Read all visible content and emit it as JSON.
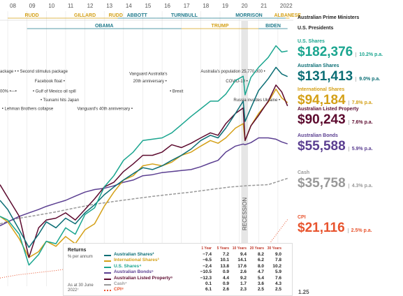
{
  "chart_data": {
    "type": "line",
    "title": "",
    "x_ticks": [
      "08",
      "09",
      "10",
      "11",
      "12",
      "13",
      "14",
      "15",
      "16",
      "17",
      "18",
      "19",
      "20",
      "21",
      "2022"
    ],
    "prime_ministers": [
      {
        "name": "RUDD",
        "from": 2008.0,
        "to": 2010.5,
        "color": "#d4a017"
      },
      {
        "name": "GILLARD",
        "from": 2010.5,
        "to": 2013.5,
        "color": "#d4a017"
      },
      {
        "name": "RUDD",
        "from": 2013.5,
        "to": 2013.7,
        "color": "#d4a017"
      },
      {
        "name": "ABBOTT",
        "from": 2013.7,
        "to": 2015.7,
        "color": "#1f7a8c"
      },
      {
        "name": "TURNBULL",
        "from": 2015.7,
        "to": 2018.6,
        "color": "#1f7a8c"
      },
      {
        "name": "MORRISON",
        "from": 2018.6,
        "to": 2022.4,
        "color": "#1f7a8c"
      },
      {
        "name": "ALBANESE",
        "from": 2022.4,
        "to": 2022.6,
        "color": "#d4a017"
      }
    ],
    "presidents": [
      {
        "name": "OBAMA",
        "from": 2009.0,
        "to": 2017.0,
        "color": "#1f7a8c"
      },
      {
        "name": "TRUMP",
        "from": 2017.0,
        "to": 2021.0,
        "color": "#d4a017"
      },
      {
        "name": "BIDEN",
        "from": 2021.0,
        "to": 2022.5,
        "color": "#1f7a8c"
      }
    ],
    "annotations": [
      {
        "text": "ackage • • Second stimulus package",
        "x": 2007.6,
        "y": 0.145
      },
      {
        "text": "Facebook float •",
        "x": 2009.4,
        "y": 0.185
      },
      {
        "text": "00% •—•",
        "x": 2007.6,
        "y": 0.225
      },
      {
        "text": "• Gulf of Mexico oil spill",
        "x": 2009.3,
        "y": 0.225
      },
      {
        "text": "• Tsunami hits Japan",
        "x": 2009.7,
        "y": 0.26
      },
      {
        "text": "• Lehman Brothers collapse",
        "x": 2007.7,
        "y": 0.295
      },
      {
        "text": "Vanguard's 40th anniversary •",
        "x": 2011.6,
        "y": 0.295
      },
      {
        "text": "Vanguard Australia's",
        "x": 2014.3,
        "y": 0.155
      },
      {
        "text": "20th anniversary •",
        "x": 2014.5,
        "y": 0.185
      },
      {
        "text": "• Brexit",
        "x": 2016.4,
        "y": 0.225
      },
      {
        "text": "Australia's population 25,770,000 •",
        "x": 2018.0,
        "y": 0.145
      },
      {
        "text": "COVID-19 •",
        "x": 2019.3,
        "y": 0.185
      },
      {
        "text": "Russia invades Ukraine •",
        "x": 2019.7,
        "y": 0.26
      }
    ],
    "recession_label": "RECESSION",
    "right_axis_label": "1.25",
    "series": [
      {
        "name": "U.S. Shares",
        "color": "#1aa58f",
        "x": [
          2007.6,
          2008.0,
          2008.6,
          2009.1,
          2009.6,
          2010.0,
          2010.5,
          2011.0,
          2011.5,
          2012.0,
          2012.5,
          2013.0,
          2013.5,
          2014.0,
          2014.5,
          2015.0,
          2015.5,
          2016.0,
          2016.5,
          2017.0,
          2017.5,
          2018.0,
          2018.5,
          2018.9,
          2019.3,
          2019.8,
          2020.2,
          2020.3,
          2020.6,
          2021.0,
          2021.5,
          2021.9,
          2022.2,
          2022.5
        ],
        "y": [
          22000,
          21000,
          17500,
          11800,
          13500,
          16000,
          15500,
          19000,
          17500,
          22500,
          24500,
          32000,
          37000,
          45000,
          50000,
          58000,
          59000,
          60000,
          64000,
          71000,
          79000,
          87000,
          96000,
          96000,
          105000,
          125000,
          132000,
          104000,
          130000,
          148000,
          168000,
          195000,
          180000,
          182376
        ]
      },
      {
        "name": "Australian Shares",
        "color": "#0b6e75",
        "x": [
          2007.6,
          2008.0,
          2008.6,
          2009.1,
          2009.6,
          2010.0,
          2010.5,
          2011.0,
          2011.5,
          2012.0,
          2012.5,
          2013.0,
          2013.5,
          2014.0,
          2014.5,
          2015.0,
          2015.5,
          2016.0,
          2016.5,
          2017.0,
          2017.5,
          2018.0,
          2018.5,
          2018.9,
          2019.3,
          2019.8,
          2020.2,
          2020.3,
          2020.6,
          2021.0,
          2021.5,
          2021.9,
          2022.2,
          2022.5
        ],
        "y": [
          27000,
          24000,
          18500,
          14800,
          17500,
          20500,
          19000,
          21500,
          20000,
          23000,
          25500,
          29000,
          32000,
          35000,
          38000,
          41000,
          40000,
          42000,
          45000,
          48000,
          52000,
          58000,
          62000,
          60000,
          68000,
          82000,
          96000,
          74000,
          88000,
          110000,
          128000,
          148000,
          136000,
          131413
        ]
      },
      {
        "name": "International Shares",
        "color": "#d4a017",
        "x": [
          2007.6,
          2008.0,
          2008.6,
          2009.1,
          2009.6,
          2010.0,
          2010.5,
          2011.0,
          2011.5,
          2012.0,
          2012.5,
          2013.0,
          2013.5,
          2014.0,
          2014.5,
          2015.0,
          2015.5,
          2016.0,
          2016.5,
          2017.0,
          2017.5,
          2018.0,
          2018.5,
          2018.9,
          2019.3,
          2019.8,
          2020.2,
          2020.3,
          2020.6,
          2021.0,
          2021.5,
          2021.9,
          2022.2,
          2022.5
        ],
        "y": [
          22000,
          20500,
          16500,
          13000,
          14000,
          16000,
          15000,
          17000,
          15500,
          18500,
          20000,
          25000,
          30000,
          35000,
          37000,
          42000,
          43000,
          42000,
          44000,
          48000,
          50000,
          54000,
          58000,
          56000,
          60000,
          68000,
          72000,
          58000,
          70000,
          82000,
          95000,
          112000,
          100000,
          94184
        ]
      },
      {
        "name": "Australian Listed Property",
        "color": "#5c0a2e",
        "x": [
          2007.6,
          2008.0,
          2008.6,
          2009.1,
          2009.6,
          2010.0,
          2010.5,
          2011.0,
          2011.5,
          2012.0,
          2012.5,
          2013.0,
          2013.5,
          2014.0,
          2014.5,
          2015.0,
          2015.5,
          2016.0,
          2016.5,
          2017.0,
          2017.5,
          2018.0,
          2018.5,
          2018.9,
          2019.3,
          2019.8,
          2020.2,
          2020.3,
          2020.6,
          2021.0,
          2021.5,
          2021.9,
          2022.2,
          2022.5
        ],
        "y": [
          33000,
          28000,
          22000,
          13000,
          19000,
          21000,
          21500,
          23000,
          21000,
          24000,
          27500,
          32000,
          34000,
          39000,
          43000,
          48000,
          48000,
          50000,
          55000,
          53000,
          56000,
          60000,
          64000,
          62000,
          72000,
          82000,
          88000,
          58000,
          70000,
          80000,
          96000,
          118000,
          108000,
          90243
        ]
      },
      {
        "name": "Australian Bonds",
        "color": "#5b3f91",
        "x": [
          2007.6,
          2008.0,
          2008.6,
          2009.1,
          2009.6,
          2010.0,
          2010.5,
          2011.0,
          2011.5,
          2012.0,
          2012.5,
          2013.0,
          2013.5,
          2014.0,
          2014.5,
          2015.0,
          2015.5,
          2016.0,
          2016.5,
          2017.0,
          2017.5,
          2018.0,
          2018.5,
          2018.9,
          2019.3,
          2019.8,
          2020.2,
          2020.3,
          2020.6,
          2021.0,
          2021.5,
          2021.9,
          2022.2,
          2022.5
        ],
        "y": [
          19500,
          20500,
          22000,
          23000,
          24000,
          25000,
          26000,
          27000,
          28500,
          30000,
          31000,
          31500,
          32500,
          34000,
          35000,
          37000,
          37500,
          38500,
          39000,
          39500,
          40000,
          41500,
          43500,
          45000,
          50000,
          54000,
          55500,
          55000,
          56500,
          60000,
          60000,
          59000,
          57000,
          55588
        ]
      },
      {
        "name": "Cash",
        "color": "#999999",
        "dashed": true,
        "x": [
          2007.6,
          2008.5,
          2009.5,
          2010.5,
          2011.5,
          2012.5,
          2013.5,
          2014.5,
          2015.5,
          2016.5,
          2017.5,
          2018.5,
          2019.5,
          2020.5,
          2021.5,
          2022.5
        ],
        "y": [
          20000,
          21400,
          22300,
          23300,
          24500,
          25700,
          26600,
          27500,
          28400,
          29200,
          30000,
          31000,
          32000,
          32600,
          33000,
          35758
        ]
      },
      {
        "name": "CPI",
        "color": "#e8542e",
        "dotted": true,
        "x": [
          2007.6,
          2008.5,
          2009.5,
          2010.5,
          2011.5,
          2012.5,
          2013.5,
          2014.5,
          2015.5,
          2016.5,
          2017.5,
          2018.5,
          2019.5,
          2020.5,
          2021.5,
          2022.5
        ],
        "y": [
          10000,
          10400,
          10700,
          11000,
          11400,
          11700,
          12000,
          12300,
          12600,
          13000,
          13400,
          13800,
          14200,
          14600,
          15200,
          21116
        ]
      }
    ],
    "xlim": [
      2007.6,
      2022.8
    ],
    "ylim_log": [
      9000,
      220000
    ]
  },
  "legend": {
    "header_pm": "Australian Prime Ministers",
    "header_pres": "U.S. Presidents",
    "items": [
      {
        "name": "U.S. Shares",
        "value": "$182,376",
        "rate": "10.2% p.a.",
        "color": "#1aa58f"
      },
      {
        "name": "Australian Shares",
        "value": "$131,413",
        "rate": "9.0% p.a.",
        "color": "#0b6e75"
      },
      {
        "name": "International Shares",
        "value": "$94,184",
        "rate": "7.8% p.a.",
        "color": "#d4a017"
      },
      {
        "name": "Australian Listed Property",
        "value": "$90,243",
        "rate": "7.6% p.a.",
        "color": "#5c0a2e"
      },
      {
        "name": "Australian Bonds",
        "value": "$55,588",
        "rate": "5.9% p.a.",
        "color": "#5b3f91"
      },
      {
        "name": "Cash",
        "value": "$35,758",
        "rate": "4.3% p.a.",
        "color": "#999999"
      },
      {
        "name": "CPI",
        "value": "$21,116",
        "rate": "2.5% p.a.",
        "color": "#e8542e"
      }
    ]
  },
  "returns_table": {
    "title": "Returns",
    "subtitle": "% per annum",
    "as_at": "As at 30 June 2022⁷",
    "columns": [
      "1 Year",
      "5 Years",
      "10 Years",
      "20 Years",
      "30 Years"
    ],
    "rows": [
      {
        "name": "Australian Shares²",
        "color": "#0b6e75",
        "style": "solid",
        "values": [
          "−7.4",
          "7.2",
          "9.4",
          "8.2",
          "9.0"
        ]
      },
      {
        "name": "International Shares³",
        "color": "#d4a017",
        "style": "solid",
        "values": [
          "−6.5",
          "10.1",
          "14.1",
          "6.2",
          "7.8"
        ]
      },
      {
        "name": "U.S. Shares⁴",
        "color": "#1aa58f",
        "style": "solid",
        "values": [
          "−2.4",
          "13.8",
          "17.6",
          "8.0",
          "10.2"
        ]
      },
      {
        "name": "Australian Bonds⁵",
        "color": "#5b3f91",
        "style": "solid",
        "values": [
          "−10.5",
          "0.9",
          "2.6",
          "4.7",
          "5.9"
        ]
      },
      {
        "name": "Australian Listed Property⁶",
        "color": "#5c0a2e",
        "style": "solid",
        "values": [
          "−12.3",
          "4.4",
          "9.2",
          "5.4",
          "7.6"
        ]
      },
      {
        "name": "Cash⁷",
        "color": "#999999",
        "style": "dashed",
        "values": [
          "0.1",
          "0.9",
          "1.7",
          "3.6",
          "4.3"
        ]
      },
      {
        "name": "CPI⁸",
        "color": "#e8542e",
        "style": "dotted",
        "values": [
          "6.1",
          "2.6",
          "2.3",
          "2.5",
          "2.5"
        ]
      }
    ]
  }
}
